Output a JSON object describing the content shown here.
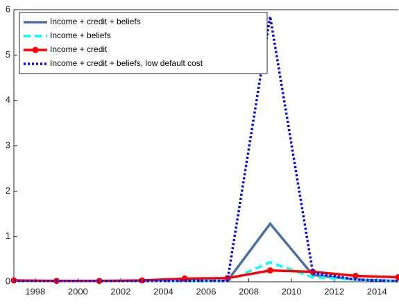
{
  "chart_data": {
    "type": "line",
    "x": [
      1997,
      1999,
      2001,
      2003,
      2005,
      2007,
      2009,
      2011,
      2013,
      2015
    ],
    "series": [
      {
        "name": "Income + credit + beliefs",
        "color": "#4a6fa5",
        "linestyle": "solid",
        "marker": "none",
        "values": [
          0.02,
          0.02,
          0.02,
          0.02,
          0.02,
          0.02,
          1.28,
          0.15,
          0.05,
          0.02
        ]
      },
      {
        "name": "Income + beliefs",
        "color": "#00ffff",
        "linestyle": "dashed",
        "marker": "none",
        "values": [
          0.02,
          0.02,
          0.02,
          0.02,
          0.02,
          0.02,
          0.43,
          0.1,
          0.05,
          0.02
        ]
      },
      {
        "name": "Income + credit",
        "color": "#ff0000",
        "linestyle": "solid",
        "marker": "circle",
        "values": [
          0.03,
          0.02,
          0.02,
          0.03,
          0.07,
          0.08,
          0.25,
          0.22,
          0.13,
          0.1
        ]
      },
      {
        "name": "Income + credit + beliefs, low default cost",
        "color": "#0000ff",
        "linestyle": "dotted",
        "marker": "none",
        "values": [
          0.02,
          0.02,
          0.02,
          0.02,
          0.02,
          0.02,
          5.85,
          0.2,
          0.05,
          0.01
        ]
      }
    ],
    "xlim": [
      1997,
      2015
    ],
    "xticks": [
      1998,
      2000,
      2002,
      2004,
      2006,
      2008,
      2010,
      2012,
      2014
    ],
    "ylim": [
      0,
      6
    ],
    "yticks": [
      0,
      1,
      2,
      3,
      4,
      5,
      6
    ],
    "legend": "upper-left",
    "grid": false
  }
}
